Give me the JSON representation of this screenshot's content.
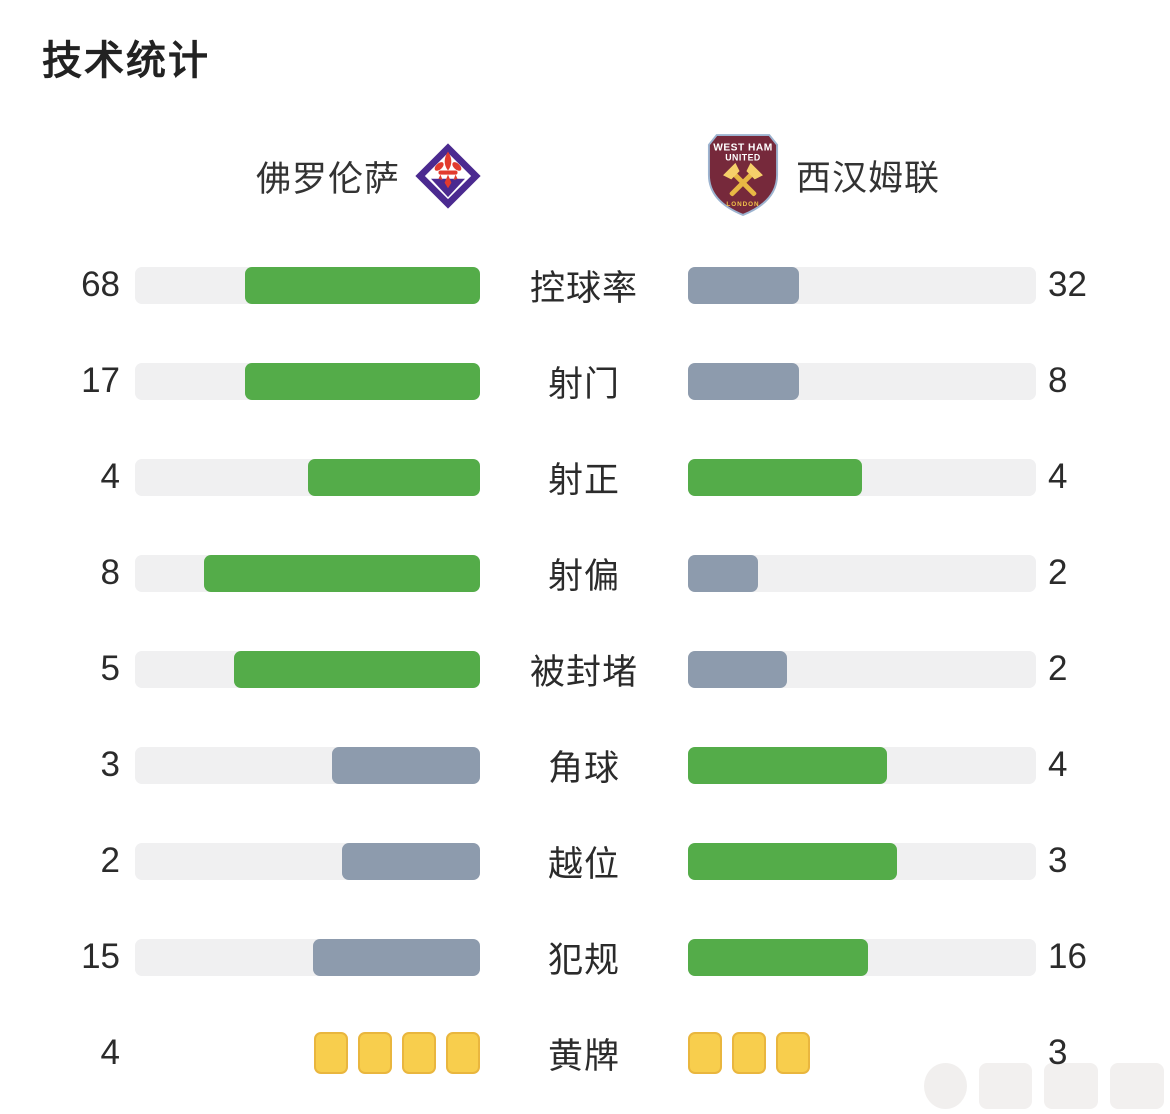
{
  "title": "技术统计",
  "teams": {
    "home": {
      "name": "佛罗伦萨"
    },
    "away": {
      "name": "西汉姆联",
      "crest_top": "WEST HAM",
      "crest_mid": "UNITED",
      "crest_bottom": "LONDON"
    }
  },
  "colors": {
    "green": "#54ac49",
    "slate": "#8d9bad",
    "track": "#f0f0f1",
    "card_fill": "#f8ce4d",
    "card_border": "#e9b63e",
    "fiorentina_purple": "#4b2a90",
    "fiorentina_red": "#e23b2e",
    "westham_claret": "#76293b",
    "westham_border": "#9db4d0",
    "westham_yellow": "#f1c24b"
  },
  "stats": [
    {
      "label": "控球率",
      "home": 68,
      "away": 32,
      "home_color": "green",
      "away_color": "slate",
      "cards": false
    },
    {
      "label": "射门",
      "home": 17,
      "away": 8,
      "home_color": "green",
      "away_color": "slate",
      "cards": false
    },
    {
      "label": "射正",
      "home": 4,
      "away": 4,
      "home_color": "green",
      "away_color": "green",
      "cards": false
    },
    {
      "label": "射偏",
      "home": 8,
      "away": 2,
      "home_color": "green",
      "away_color": "slate",
      "cards": false
    },
    {
      "label": "被封堵",
      "home": 5,
      "away": 2,
      "home_color": "green",
      "away_color": "slate",
      "cards": false
    },
    {
      "label": "角球",
      "home": 3,
      "away": 4,
      "home_color": "slate",
      "away_color": "green",
      "cards": false
    },
    {
      "label": "越位",
      "home": 2,
      "away": 3,
      "home_color": "slate",
      "away_color": "green",
      "cards": false
    },
    {
      "label": "犯规",
      "home": 15,
      "away": 16,
      "home_color": "slate",
      "away_color": "green",
      "cards": false
    },
    {
      "label": "黄牌",
      "home": 4,
      "away": 3,
      "home_color": "card_fill",
      "away_color": "card_fill",
      "cards": true
    }
  ],
  "chart_data": {
    "type": "bar",
    "title": "技术统计",
    "orientation": "mirrored-horizontal",
    "note": "fill length = value / (home value + away value); green marks the leading or tied side, slate-gray the trailing side; yellow cards drawn as card icons",
    "categories": [
      "控球率",
      "射门",
      "射正",
      "射偏",
      "被封堵",
      "角球",
      "越位",
      "犯规",
      "黄牌"
    ],
    "series": [
      {
        "name": "佛罗伦萨",
        "values": [
          68,
          17,
          4,
          8,
          5,
          3,
          2,
          15,
          4
        ]
      },
      {
        "name": "西汉姆联",
        "values": [
          32,
          8,
          4,
          2,
          2,
          4,
          3,
          16,
          3
        ]
      }
    ],
    "legend_position": "top",
    "grid": false
  }
}
